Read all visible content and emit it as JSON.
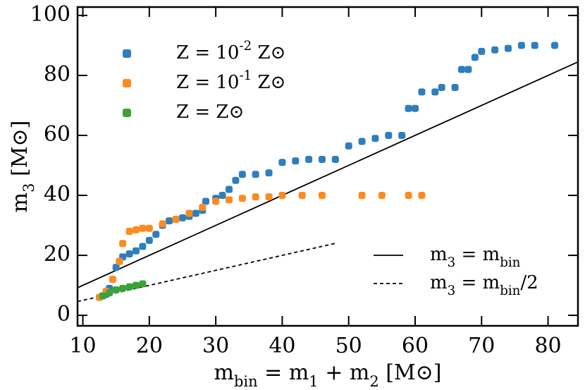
{
  "chart_data": {
    "type": "scatter",
    "xlabel": "m_{bin} = m_{1} + m_{2} [M⊙]",
    "ylabel": "m_{3} [M⊙]",
    "xlim": [
      9.2,
      84.5
    ],
    "ylim": [
      -3.5,
      102.8
    ],
    "xticks": [
      10,
      20,
      30,
      40,
      50,
      60,
      70,
      80
    ],
    "yticks": [
      0,
      20,
      40,
      60,
      80,
      100
    ],
    "series": [
      {
        "name": "Z = 10^{-2} Z⊙",
        "color": "#2f7ebc",
        "x": [
          12.5,
          13,
          13.5,
          14,
          14.5,
          15,
          15.5,
          16,
          17,
          18,
          19,
          20,
          21,
          22,
          23,
          24,
          25,
          26,
          27,
          28,
          28.5,
          30,
          31,
          32,
          33,
          34,
          36,
          38,
          40,
          42,
          44,
          46,
          48,
          50,
          52,
          54,
          56,
          58,
          59,
          60,
          61,
          63,
          64,
          66,
          67,
          68,
          69,
          70,
          72,
          74,
          76,
          78,
          81
        ],
        "values": [
          6,
          6.5,
          7,
          9,
          12,
          16,
          18,
          19.5,
          20.5,
          21.5,
          23,
          25,
          27,
          30,
          31.5,
          32,
          32.5,
          33,
          34,
          35,
          38,
          39,
          40,
          42,
          45,
          47,
          47,
          47.5,
          51,
          51.5,
          52,
          52,
          52,
          56.5,
          58,
          59,
          60,
          60,
          69,
          69,
          74.5,
          74.5,
          76,
          76,
          82,
          82,
          86,
          88,
          88.5,
          89,
          90,
          90,
          90
        ]
      },
      {
        "name": "Z = 10^{-1} Z⊙",
        "color": "#ff8a1e",
        "x": [
          12.5,
          13.5,
          14.5,
          15.5,
          16,
          17,
          18,
          19,
          20,
          22,
          24,
          26,
          28,
          30,
          32,
          34,
          36,
          38,
          40,
          43,
          46,
          52,
          55,
          59,
          61
        ],
        "values": [
          6,
          8,
          12,
          18,
          24,
          28,
          28.5,
          29,
          29,
          30.5,
          32,
          34,
          36,
          38,
          38.5,
          39,
          39.5,
          39.5,
          40,
          40,
          40,
          40,
          40,
          40,
          40
        ]
      },
      {
        "name": "Z =  Z⊙",
        "color": "#3aa338",
        "x": [
          13,
          14,
          15,
          16,
          17,
          18,
          19
        ],
        "values": [
          6.5,
          7.5,
          8.5,
          9,
          9.5,
          10,
          10.5
        ]
      }
    ],
    "lines": [
      {
        "name": "m_{3} = m_{bin}",
        "dash": false,
        "x": [
          9.2,
          84.5
        ],
        "values": [
          9.2,
          84.5
        ]
      },
      {
        "name": "m_{3} = m_{bin}/2",
        "dash": true,
        "x": [
          9.2,
          48
        ],
        "values": [
          4.6,
          24
        ]
      }
    ]
  }
}
